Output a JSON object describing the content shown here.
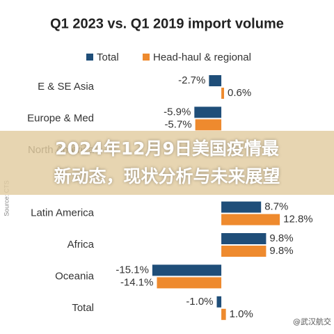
{
  "chart_data": {
    "type": "hbar",
    "title": "Q1 2023 vs. Q1 2019 import volume",
    "categories": [
      "E & SE Asia",
      "Europe & Med",
      "North America",
      null,
      "Latin America",
      "Africa",
      "Oceania",
      "Total"
    ],
    "series": [
      {
        "name": "Total",
        "color": "#1f4e79",
        "values": [
          -2.7,
          -5.9,
          null,
          null,
          8.7,
          9.8,
          -15.1,
          -1.0
        ],
        "value_labels": [
          "-2.7%",
          "-5.9%",
          null,
          null,
          "8.7%",
          "9.8%",
          "-15.1%",
          "-1.0%"
        ]
      },
      {
        "name": "Head-haul & regional",
        "color": "#ee8a2e",
        "values": [
          0.6,
          -5.7,
          null,
          null,
          12.8,
          9.8,
          -14.1,
          1.0
        ],
        "value_labels": [
          "0.6%",
          "-5.7%",
          null,
          null,
          "12.8%",
          "9.8%",
          "-14.1%",
          "1.0%"
        ]
      }
    ],
    "xlim": [
      -16,
      14
    ],
    "source": "Source: CTS"
  },
  "overlay": {
    "lines": [
      "2024年12月9日美国疫情最",
      "新动态，现状分析与未来展望"
    ]
  },
  "watermark": "@武汉航交"
}
